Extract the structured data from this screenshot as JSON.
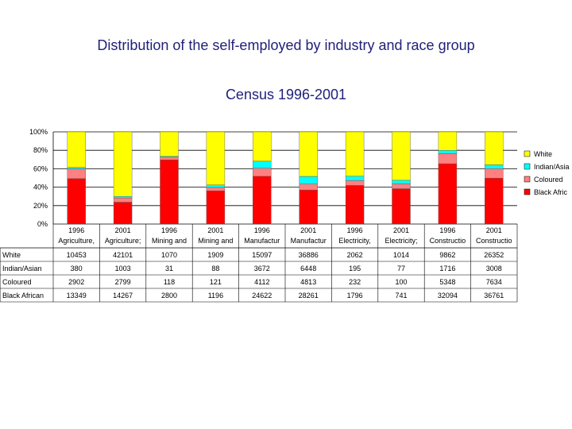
{
  "title": "Distribution of the self-employed by industry and race group",
  "subtitle": "Census 1996-2001",
  "chart_data": {
    "type": "bar",
    "stacked": "percent",
    "y_ticks": [
      "100%",
      "80%",
      "60%",
      "40%",
      "20%",
      "0%"
    ],
    "ylim": [
      0,
      100
    ],
    "grid": true,
    "legend_position": "right",
    "categories": [
      {
        "year": "1996",
        "industry": "Agriculture,"
      },
      {
        "year": "2001",
        "industry": "Agriculture;"
      },
      {
        "year": "1996",
        "industry": "Mining and"
      },
      {
        "year": "2001",
        "industry": "Mining and"
      },
      {
        "year": "1996",
        "industry": "Manufactur"
      },
      {
        "year": "2001",
        "industry": "Manufactur"
      },
      {
        "year": "1996",
        "industry": "Electricity,"
      },
      {
        "year": "2001",
        "industry": "Electricity;"
      },
      {
        "year": "1996",
        "industry": "Constructio"
      },
      {
        "year": "2001",
        "industry": "Constructio"
      }
    ],
    "series": [
      {
        "name": "Black African",
        "legend_label": "Black Afric",
        "color": "#ff0000",
        "values": [
          13349,
          14267,
          2800,
          1196,
          24622,
          28261,
          1796,
          741,
          32094,
          36761
        ]
      },
      {
        "name": "Coloured",
        "legend_label": "Coloured",
        "color": "#ff8080",
        "values": [
          2902,
          2799,
          118,
          121,
          4112,
          4813,
          232,
          100,
          5348,
          7634
        ]
      },
      {
        "name": "Indian/Asian",
        "legend_label": "Indian/Asia",
        "color": "#00ffff",
        "values": [
          380,
          1003,
          31,
          88,
          3672,
          6448,
          195,
          77,
          1716,
          3008
        ]
      },
      {
        "name": "White",
        "legend_label": "White",
        "color": "#ffff00",
        "values": [
          10453,
          42101,
          1070,
          1909,
          15097,
          36886,
          2062,
          1014,
          9862,
          26352
        ]
      }
    ],
    "table_row_order": [
      "White",
      "Indian/Asian",
      "Coloured",
      "Black African"
    ]
  }
}
